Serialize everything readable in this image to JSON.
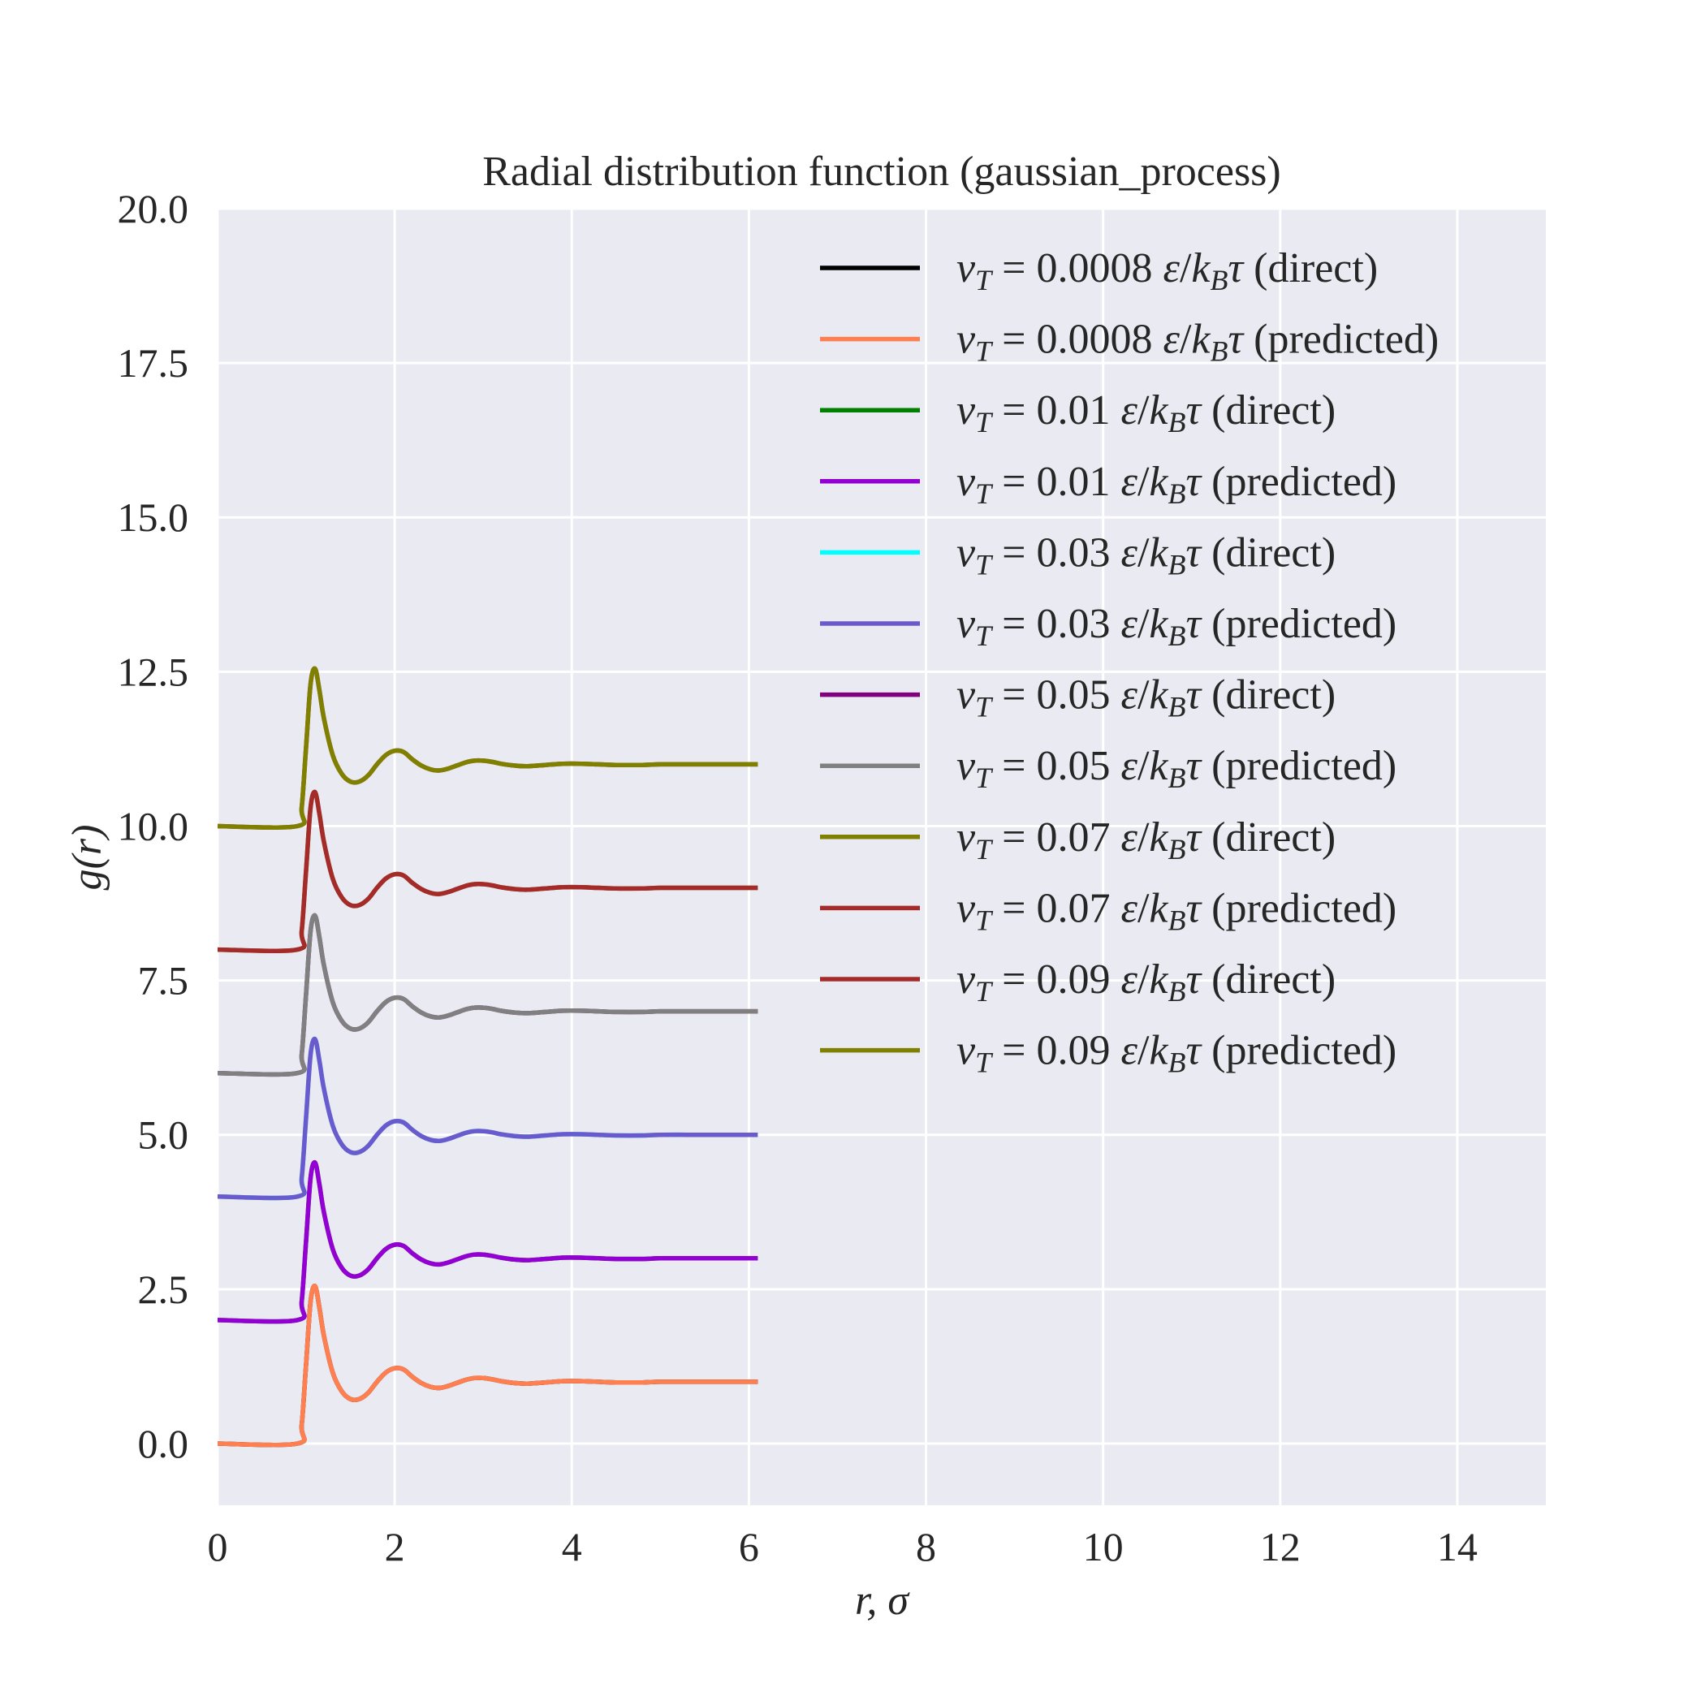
{
  "chart_data": {
    "type": "line",
    "title": "Radial distribution function (gaussian_process)",
    "xlabel": "r, σ",
    "ylabel": "g(r)",
    "xlim": [
      0,
      15
    ],
    "ylim": [
      -1,
      20
    ],
    "xticks": [
      0,
      2,
      4,
      6,
      8,
      10,
      12,
      14
    ],
    "xtick_labels": [
      "0",
      "2",
      "4",
      "6",
      "8",
      "10",
      "12",
      "14"
    ],
    "yticks": [
      0,
      2.5,
      5,
      7.5,
      10,
      12.5,
      15,
      17.5,
      20
    ],
    "ytick_labels": [
      "0.0",
      "2.5",
      "5.0",
      "7.5",
      "10.0",
      "12.5",
      "15.0",
      "17.5",
      "20.0"
    ],
    "grid": true,
    "legend_position": "upper-right",
    "background": "#eaeaf2",
    "base_curve": {
      "r": [
        0,
        0.9,
        0.95,
        1.0,
        1.05,
        1.1,
        1.15,
        1.2,
        1.3,
        1.4,
        1.5,
        1.6,
        1.7,
        1.8,
        1.9,
        2.0,
        2.1,
        2.2,
        2.3,
        2.4,
        2.5,
        2.6,
        2.7,
        2.8,
        2.9,
        3.0,
        3.1,
        3.2,
        3.35,
        3.5,
        3.7,
        3.9,
        4.1,
        4.3,
        4.5,
        4.8,
        5.0,
        5.3,
        5.6,
        5.9,
        6.1
      ],
      "g": [
        0,
        0,
        0.3,
        1.3,
        2.3,
        2.55,
        2.2,
        1.75,
        1.15,
        0.85,
        0.72,
        0.72,
        0.82,
        1.0,
        1.15,
        1.22,
        1.2,
        1.08,
        0.98,
        0.92,
        0.9,
        0.93,
        0.98,
        1.03,
        1.06,
        1.06,
        1.04,
        1.01,
        0.98,
        0.97,
        0.99,
        1.01,
        1.01,
        1.0,
        0.99,
        0.99,
        1.0,
        1.0,
        1.0,
        1.0,
        1.0
      ]
    },
    "series": [
      {
        "name": "v_T = 0.0008 ε/k_Bτ (direct)",
        "value": "0.0008",
        "kind": "(direct)",
        "offset": 0,
        "color": "#000000"
      },
      {
        "name": "v_T = 0.0008 ε/k_Bτ (predicted)",
        "value": "0.0008",
        "kind": "(predicted)",
        "offset": 0,
        "color": "#ff7f50"
      },
      {
        "name": "v_T = 0.01 ε/k_Bτ (direct)",
        "value": "0.01",
        "kind": "(direct)",
        "offset": 2,
        "color": "#008000"
      },
      {
        "name": "v_T = 0.01 ε/k_Bτ (predicted)",
        "value": "0.01",
        "kind": "(predicted)",
        "offset": 2,
        "color": "#9400d3"
      },
      {
        "name": "v_T = 0.03 ε/k_Bτ (direct)",
        "value": "0.03",
        "kind": "(direct)",
        "offset": 4,
        "color": "#00ffff"
      },
      {
        "name": "v_T = 0.03 ε/k_Bτ (predicted)",
        "value": "0.03",
        "kind": "(predicted)",
        "offset": 4,
        "color": "#6a5acd"
      },
      {
        "name": "v_T = 0.05 ε/k_Bτ (direct)",
        "value": "0.05",
        "kind": "(direct)",
        "offset": 6,
        "color": "#800080"
      },
      {
        "name": "v_T = 0.05 ε/k_Bτ (predicted)",
        "value": "0.05",
        "kind": "(predicted)",
        "offset": 6,
        "color": "#808080"
      },
      {
        "name": "v_T = 0.07 ε/k_Bτ (direct)",
        "value": "0.07",
        "kind": "(direct)",
        "offset": 8,
        "color": "#808000"
      },
      {
        "name": "v_T = 0.07 ε/k_Bτ (predicted)",
        "value": "0.07",
        "kind": "(predicted)",
        "offset": 8,
        "color": "#a52a2a"
      },
      {
        "name": "v_T = 0.09 ε/k_Bτ (direct)",
        "value": "0.09",
        "kind": "(direct)",
        "offset": 10,
        "color": "#a52a2a"
      },
      {
        "name": "v_T = 0.09 ε/k_Bτ (predicted)",
        "value": "0.09",
        "kind": "(predicted)",
        "offset": 10,
        "color": "#808000"
      }
    ]
  }
}
